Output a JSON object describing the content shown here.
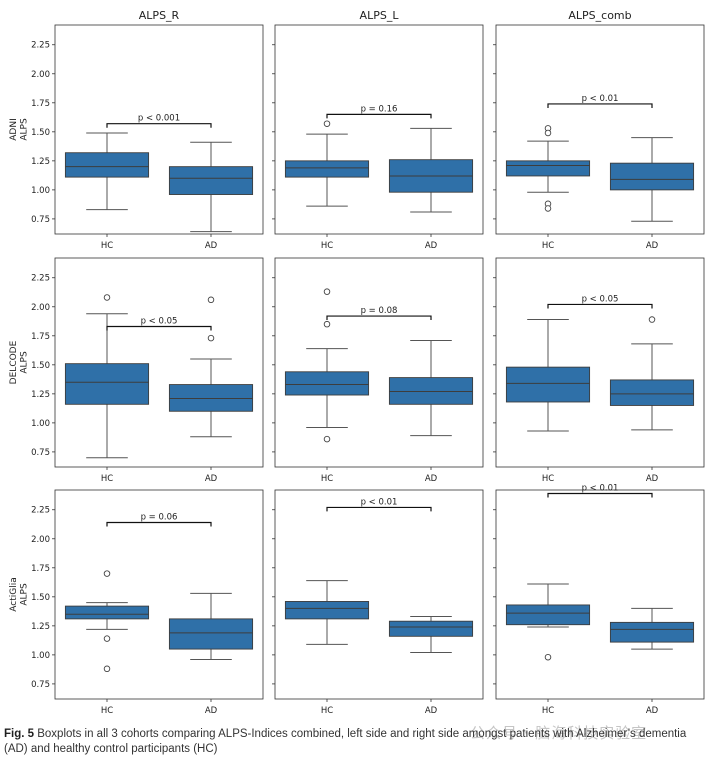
{
  "figure": {
    "caption_label": "Fig. 5",
    "caption_text": " Boxplots in all 3 cohorts comparing ALPS-Indices combined, left side and right side amongst patients with Alzheimer’s dementia (AD) and healthy control participants (HC)",
    "watermark": "公众号 · 脑海科技实验室",
    "box_color": "#2f70a8",
    "axes_color": "#333333"
  },
  "chart_data": {
    "type": "boxplot",
    "columns": [
      "ALPS_R",
      "ALPS_L",
      "ALPS_comb"
    ],
    "rows": [
      "ADNI\nALPS",
      "DELCODE\nALPS",
      "ActiGlia\nALPS"
    ],
    "categories": [
      "HC",
      "AD"
    ],
    "yticks": [
      0.75,
      1.0,
      1.25,
      1.5,
      1.75,
      2.0,
      2.25
    ],
    "ytick_labels": [
      "0.75",
      "1.00",
      "1.25",
      "1.50",
      "1.75",
      "2.00",
      "2.25"
    ],
    "ylim": [
      0.62,
      2.42
    ],
    "panels": [
      {
        "row": 0,
        "col": 0,
        "p_label": "p < 0.001",
        "p_y": 1.57,
        "boxes": [
          {
            "whislo": 0.83,
            "q1": 1.11,
            "med": 1.2,
            "q3": 1.32,
            "whishi": 1.49,
            "fliers": []
          },
          {
            "whislo": 0.64,
            "q1": 0.96,
            "med": 1.1,
            "q3": 1.2,
            "whishi": 1.41,
            "fliers": []
          }
        ]
      },
      {
        "row": 0,
        "col": 1,
        "p_label": "p = 0.16",
        "p_y": 1.65,
        "boxes": [
          {
            "whislo": 0.86,
            "q1": 1.11,
            "med": 1.19,
            "q3": 1.25,
            "whishi": 1.48,
            "fliers": [
              1.57
            ]
          },
          {
            "whislo": 0.81,
            "q1": 0.98,
            "med": 1.12,
            "q3": 1.26,
            "whishi": 1.53,
            "fliers": []
          }
        ]
      },
      {
        "row": 0,
        "col": 2,
        "p_label": "p < 0.01",
        "p_y": 1.74,
        "boxes": [
          {
            "whislo": 0.98,
            "q1": 1.12,
            "med": 1.21,
            "q3": 1.25,
            "whishi": 1.42,
            "fliers": [
              1.53,
              1.49,
              0.88,
              0.84
            ]
          },
          {
            "whislo": 0.73,
            "q1": 1.0,
            "med": 1.09,
            "q3": 1.23,
            "whishi": 1.45,
            "fliers": []
          }
        ]
      },
      {
        "row": 1,
        "col": 0,
        "p_label": "p < 0.05",
        "p_y": 1.83,
        "boxes": [
          {
            "whislo": 0.7,
            "q1": 1.16,
            "med": 1.35,
            "q3": 1.51,
            "whishi": 1.94,
            "fliers": [
              2.08
            ]
          },
          {
            "whislo": 0.88,
            "q1": 1.1,
            "med": 1.21,
            "q3": 1.33,
            "whishi": 1.55,
            "fliers": [
              2.06,
              1.73
            ]
          }
        ]
      },
      {
        "row": 1,
        "col": 1,
        "p_label": "p = 0.08",
        "p_y": 1.92,
        "boxes": [
          {
            "whislo": 0.96,
            "q1": 1.24,
            "med": 1.33,
            "q3": 1.44,
            "whishi": 1.64,
            "fliers": [
              2.13,
              1.85,
              0.86
            ]
          },
          {
            "whislo": 0.89,
            "q1": 1.16,
            "med": 1.27,
            "q3": 1.39,
            "whishi": 1.71,
            "fliers": []
          }
        ]
      },
      {
        "row": 1,
        "col": 2,
        "p_label": "p < 0.05",
        "p_y": 2.02,
        "boxes": [
          {
            "whislo": 0.93,
            "q1": 1.18,
            "med": 1.34,
            "q3": 1.48,
            "whishi": 1.89,
            "fliers": []
          },
          {
            "whislo": 0.94,
            "q1": 1.15,
            "med": 1.25,
            "q3": 1.37,
            "whishi": 1.68,
            "fliers": [
              1.89
            ]
          }
        ]
      },
      {
        "row": 2,
        "col": 0,
        "p_label": "p = 0.06",
        "p_y": 2.14,
        "boxes": [
          {
            "whislo": 1.22,
            "q1": 1.31,
            "med": 1.35,
            "q3": 1.42,
            "whishi": 1.45,
            "fliers": [
              1.7,
              1.14,
              0.88
            ]
          },
          {
            "whislo": 0.96,
            "q1": 1.05,
            "med": 1.19,
            "q3": 1.31,
            "whishi": 1.53,
            "fliers": []
          }
        ]
      },
      {
        "row": 2,
        "col": 1,
        "p_label": "p < 0.01",
        "p_y": 2.27,
        "boxes": [
          {
            "whislo": 1.09,
            "q1": 1.31,
            "med": 1.4,
            "q3": 1.46,
            "whishi": 1.64,
            "fliers": []
          },
          {
            "whislo": 1.02,
            "q1": 1.16,
            "med": 1.24,
            "q3": 1.29,
            "whishi": 1.33,
            "fliers": []
          }
        ]
      },
      {
        "row": 2,
        "col": 2,
        "p_label": "p < 0.01",
        "p_y": 2.39,
        "boxes": [
          {
            "whislo": 1.24,
            "q1": 1.26,
            "med": 1.36,
            "q3": 1.43,
            "whishi": 1.61,
            "fliers": [
              0.98
            ]
          },
          {
            "whislo": 1.05,
            "q1": 1.11,
            "med": 1.22,
            "q3": 1.28,
            "whishi": 1.4,
            "fliers": []
          }
        ]
      }
    ]
  }
}
